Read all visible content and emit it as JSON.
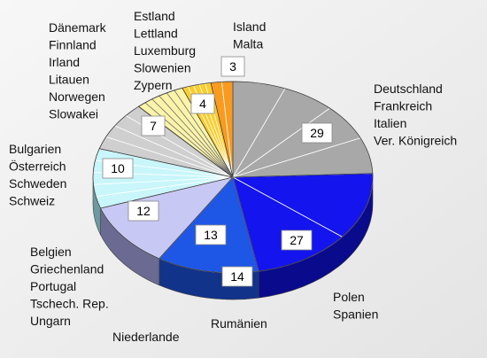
{
  "chart_data": {
    "type": "pie",
    "title": "",
    "slices": [
      {
        "value": 29,
        "label_lines": [
          "Deutschland",
          "Frankreich",
          "Italien",
          "Ver. Königreich"
        ],
        "color": "#a8a8a8",
        "side": "#737373",
        "seg_count": 4,
        "seg_stroke": "#ffffff"
      },
      {
        "value": 27,
        "label_lines": [
          "Polen",
          "Spanien"
        ],
        "color": "#1414ee",
        "side": "#0a0a8c",
        "seg_count": 2,
        "seg_stroke": "#ffffff"
      },
      {
        "value": 14,
        "label_lines": [
          "Rumänien"
        ],
        "color": "#1e56e6",
        "side": "#12338a",
        "seg_count": 1,
        "seg_stroke": "#ffffff"
      },
      {
        "value": 13,
        "label_lines": [
          "Niederlande"
        ],
        "color": "#c8c8f4",
        "side": "#6a6a92",
        "seg_count": 1,
        "seg_stroke": "#ffffff"
      },
      {
        "value": 12,
        "label_lines": [
          "Belgien",
          "Griechenland",
          "Portugal",
          "Tschech. Rep.",
          "Ungarn"
        ],
        "color": "#c8f6fa",
        "side": "#6d9aa0",
        "seg_count": 5,
        "seg_stroke": "#ffffff"
      },
      {
        "value": 10,
        "label_lines": [
          "Bulgarien",
          "Österreich",
          "Schweden",
          "Schweiz"
        ],
        "color": "#cfcfcf",
        "side": "#8a8a8a",
        "seg_count": 4,
        "seg_stroke": "#ffffff"
      },
      {
        "value": 7,
        "label_lines": [
          "Dänemark",
          "Finnland",
          "Irland",
          "Litauen",
          "Norwegen",
          "Slowakei"
        ],
        "color": "#fbf4a8",
        "side": "#b3ab5a",
        "seg_count": 6,
        "seg_stroke": "#777777"
      },
      {
        "value": 4,
        "label_lines": [
          "Estland",
          "Lettland",
          "Luxemburg",
          "Slowenien",
          "Zypern"
        ],
        "color": "#fccd2a",
        "side": "#b58a10",
        "seg_count": 5,
        "seg_stroke": "#ffffff"
      },
      {
        "value": 3,
        "label_lines": [
          "Island",
          "Malta"
        ],
        "color": "#fa9a1e",
        "side": "#b0620c",
        "seg_count": 2,
        "seg_stroke": "#ffffff"
      }
    ]
  }
}
